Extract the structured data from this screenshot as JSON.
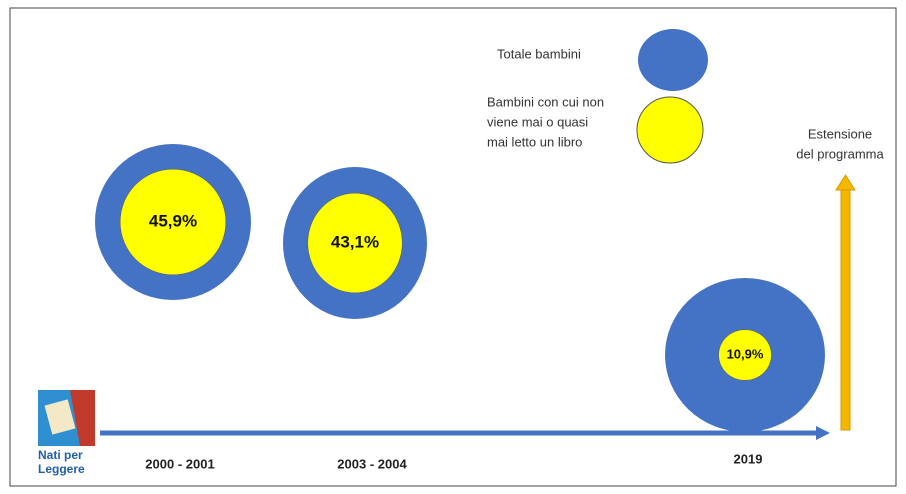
{
  "legend": [
    {
      "lines": [
        "Totale bambini"
      ]
    },
    {
      "lines": [
        "Bambini con cui non",
        "viene mai o quasi",
        "mai letto un libro"
      ]
    }
  ],
  "annotation": [
    "Estensione",
    "del programma"
  ],
  "logo": [
    "Nati per",
    "Leggere"
  ],
  "items": [
    {
      "period": "2000 - 2001",
      "value": 45.9,
      "value_label": "45,9%"
    },
    {
      "period": "2003 - 2004",
      "value": 43.1,
      "value_label": "43,1%"
    },
    {
      "period": "2019",
      "value": 10.9,
      "value_label": "10,9%"
    }
  ]
}
